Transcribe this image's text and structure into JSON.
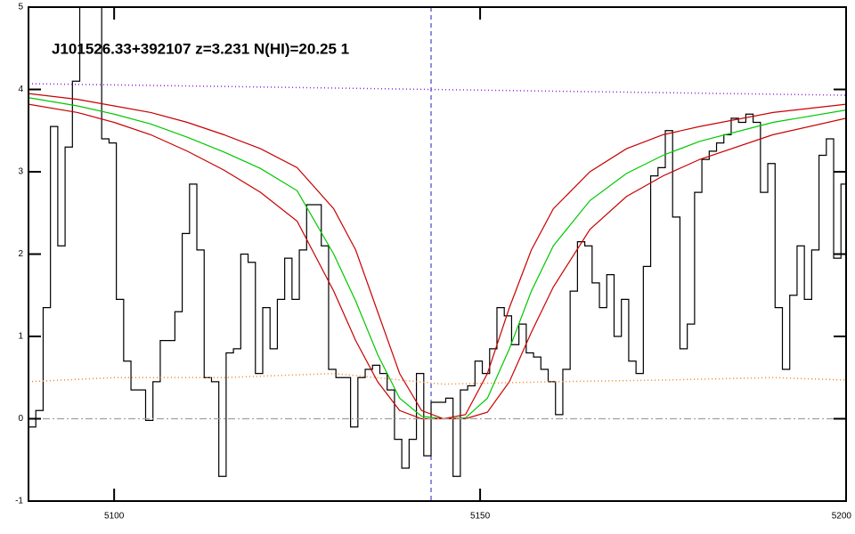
{
  "chart_data": {
    "type": "line",
    "title": "J101526.33+392107 z=3.231 N(HI)=20.25 1",
    "xlim": [
      5088.3,
      5200
    ],
    "ylim": [
      -1,
      5
    ],
    "xticks": [
      5100,
      5150,
      5200
    ],
    "yticks": [
      -1,
      0,
      1,
      2,
      3,
      4,
      5
    ],
    "vline": 5143.3,
    "vline_color": "#2020c0",
    "series": [
      {
        "style": "step",
        "color": "#000000",
        "x": [
          5088.8,
          5089.8,
          5090.8,
          5091.8,
          5092.8,
          5093.8,
          5094.8,
          5095.8,
          5096.8,
          5097.8,
          5098.8,
          5099.8,
          5100.8,
          5101.8,
          5102.8,
          5103.8,
          5104.8,
          5105.8,
          5106.8,
          5107.8,
          5108.8,
          5109.8,
          5110.8,
          5111.8,
          5112.8,
          5113.8,
          5114.8,
          5115.8,
          5116.8,
          5117.8,
          5118.8,
          5119.8,
          5120.8,
          5121.8,
          5122.8,
          5123.8,
          5124.8,
          5125.8,
          5126.8,
          5127.8,
          5128.8,
          5129.8,
          5130.8,
          5131.8,
          5132.8,
          5133.8,
          5134.8,
          5135.8,
          5136.8,
          5137.8,
          5138.8,
          5139.8,
          5140.8,
          5141.8,
          5142.8,
          5143.8,
          5144.8,
          5145.8,
          5146.8,
          5147.8,
          5148.8,
          5149.8,
          5150.8,
          5151.8,
          5152.8,
          5153.8,
          5154.8,
          5155.8,
          5156.8,
          5157.8,
          5158.8,
          5159.8,
          5160.8,
          5161.8,
          5162.8,
          5163.8,
          5164.8,
          5165.8,
          5166.8,
          5167.8,
          5168.8,
          5169.8,
          5170.8,
          5171.8,
          5172.8,
          5173.8,
          5174.8,
          5175.8,
          5176.8,
          5177.8,
          5178.8,
          5179.8,
          5180.8,
          5181.8,
          5182.8,
          5183.8,
          5184.8,
          5185.8,
          5186.8,
          5187.8,
          5188.8,
          5189.8,
          5190.8,
          5191.8,
          5192.8,
          5193.8,
          5194.8,
          5195.8,
          5196.8,
          5197.8,
          5198.8,
          5199.8
        ],
        "values": [
          -0.1,
          0.1,
          1.35,
          3.55,
          2.1,
          3.3,
          4.1,
          5,
          5,
          5,
          3.4,
          3.35,
          1.45,
          0.7,
          0.35,
          0.35,
          -0.02,
          0.45,
          0.95,
          0.95,
          1.3,
          2.25,
          2.85,
          2.05,
          0.5,
          0.45,
          -0.7,
          0.8,
          0.85,
          2.0,
          1.9,
          0.55,
          1.35,
          0.85,
          1.45,
          1.95,
          1.45,
          2.05,
          2.6,
          2.6,
          2.1,
          0.6,
          0.5,
          0.5,
          -0.1,
          0.5,
          0.6,
          0.65,
          0.55,
          0.35,
          -0.25,
          -0.6,
          -0.25,
          0.55,
          -0.45,
          0.2,
          0.2,
          0.25,
          -0.7,
          0.35,
          0.4,
          0.7,
          0.55,
          0.85,
          1.35,
          1.25,
          0.9,
          1.15,
          0.8,
          0.75,
          0.6,
          0.45,
          0.05,
          0.6,
          1.55,
          2.15,
          2.1,
          1.65,
          1.35,
          1.75,
          1.0,
          1.45,
          0.7,
          0.55,
          1.85,
          2.95,
          3.05,
          3.5,
          2.45,
          0.85,
          1.15,
          2.75,
          3.15,
          3.25,
          3.35,
          3.45,
          3.65,
          3.6,
          3.7,
          3.6,
          2.75,
          3.1,
          1.35,
          0.6,
          1.5,
          2.1,
          1.45,
          2.05,
          3.2,
          3.4,
          1.95,
          2.85
        ]
      },
      {
        "style": "solid",
        "color": "#00c800",
        "x": [
          5088.3,
          5095,
          5100,
          5105,
          5110,
          5115,
          5120,
          5125,
          5130,
          5133,
          5136,
          5139,
          5142,
          5145,
          5148,
          5151,
          5154,
          5157,
          5160,
          5165,
          5170,
          5175,
          5180,
          5190,
          5200
        ],
        "values": [
          3.9,
          3.8,
          3.7,
          3.58,
          3.42,
          3.24,
          3.04,
          2.77,
          2.0,
          1.43,
          0.78,
          0.25,
          0.03,
          0,
          0.01,
          0.25,
          0.85,
          1.55,
          2.1,
          2.65,
          2.98,
          3.2,
          3.37,
          3.6,
          3.75
        ]
      },
      {
        "style": "solid",
        "color": "#c80000",
        "x": [
          5088.3,
          5095,
          5100,
          5105,
          5110,
          5115,
          5120,
          5125,
          5130,
          5133,
          5136,
          5139,
          5142,
          5145,
          5148,
          5151,
          5154,
          5157,
          5160,
          5165,
          5170,
          5175,
          5180,
          5190,
          5200
        ],
        "values": [
          3.95,
          3.88,
          3.8,
          3.72,
          3.6,
          3.45,
          3.28,
          3.05,
          2.55,
          2.05,
          1.3,
          0.55,
          0.1,
          0,
          0.05,
          0.55,
          1.35,
          2.05,
          2.55,
          3.0,
          3.28,
          3.45,
          3.55,
          3.72,
          3.82
        ]
      },
      {
        "style": "solid",
        "color": "#c80000",
        "x": [
          5088.3,
          5095,
          5100,
          5105,
          5110,
          5115,
          5120,
          5125,
          5130,
          5133,
          5136,
          5139,
          5142,
          5145,
          5148,
          5151,
          5154,
          5157,
          5160,
          5165,
          5170,
          5175,
          5180,
          5190,
          5200
        ],
        "values": [
          3.82,
          3.72,
          3.6,
          3.45,
          3.25,
          3.02,
          2.75,
          2.4,
          1.55,
          0.95,
          0.45,
          0.1,
          0,
          0,
          0,
          0.08,
          0.45,
          1.05,
          1.6,
          2.3,
          2.7,
          2.95,
          3.15,
          3.45,
          3.65
        ]
      },
      {
        "style": "dotted",
        "color": "#9020e0",
        "x": [
          5088.3,
          5143.3,
          5200
        ],
        "values": [
          4.07,
          4.0,
          3.93
        ]
      },
      {
        "style": "dotted",
        "color": "#f08020",
        "x": [
          5088.3,
          5100,
          5115,
          5130,
          5145,
          5160,
          5175,
          5190,
          5200
        ],
        "values": [
          0.45,
          0.5,
          0.5,
          0.55,
          0.42,
          0.45,
          0.47,
          0.5,
          0.47
        ]
      },
      {
        "style": "dashdot",
        "color": "#a0a0a0",
        "x": [
          5088.3,
          5200
        ],
        "values": [
          0,
          0
        ]
      }
    ]
  }
}
